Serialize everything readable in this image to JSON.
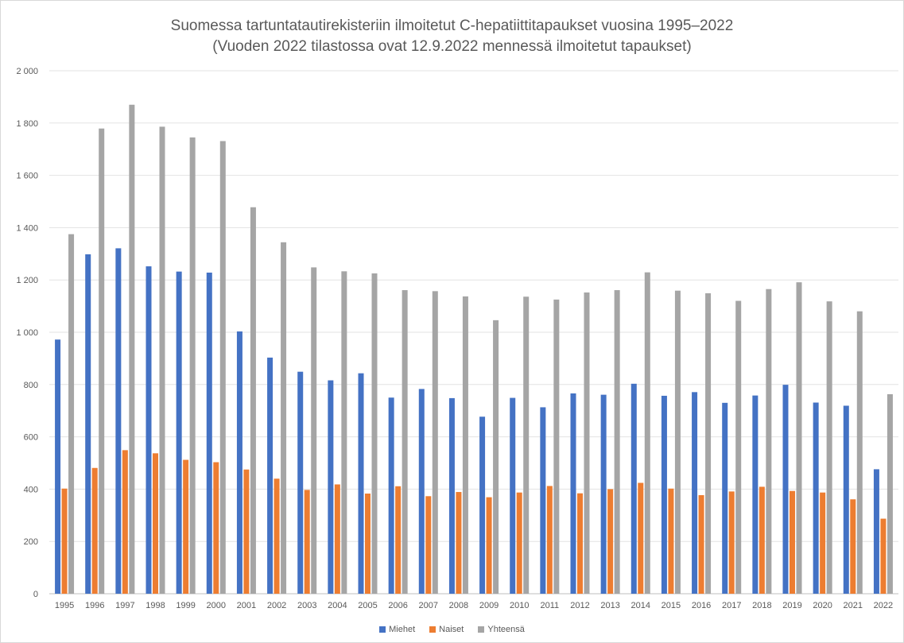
{
  "chart_data": {
    "type": "bar",
    "title": "Suomessa tartuntatautirekisteriin ilmoitetut C-hepatiittitapaukset vuosina 1995–2022",
    "subtitle": "(Vuoden 2022 tilastossa ovat 12.9.2022 mennessä ilmoitetut tapaukset)",
    "categories": [
      "1995",
      "1996",
      "1997",
      "1998",
      "1999",
      "2000",
      "2001",
      "2002",
      "2003",
      "2004",
      "2005",
      "2006",
      "2007",
      "2008",
      "2009",
      "2010",
      "2011",
      "2012",
      "2013",
      "2014",
      "2015",
      "2016",
      "2017",
      "2018",
      "2019",
      "2020",
      "2021",
      "2022"
    ],
    "series": [
      {
        "name": "Miehet",
        "color": "#4472C4",
        "values": [
          972,
          1298,
          1321,
          1252,
          1232,
          1228,
          1003,
          903,
          849,
          816,
          843,
          750,
          783,
          748,
          677,
          749,
          713,
          766,
          761,
          803,
          757,
          771,
          730,
          758,
          799,
          731,
          719,
          476
        ]
      },
      {
        "name": "Naiset",
        "color": "#ED7D31",
        "values": [
          402,
          481,
          549,
          537,
          512,
          503,
          475,
          440,
          397,
          418,
          383,
          411,
          373,
          389,
          369,
          387,
          412,
          384,
          400,
          424,
          402,
          377,
          391,
          409,
          393,
          387,
          361,
          287
        ]
      },
      {
        "name": "Yhteensä",
        "color": "#A5A5A5",
        "values": [
          1375,
          1779,
          1870,
          1786,
          1745,
          1731,
          1478,
          1344,
          1248,
          1233,
          1225,
          1161,
          1157,
          1137,
          1046,
          1136,
          1125,
          1152,
          1161,
          1229,
          1159,
          1149,
          1120,
          1165,
          1191,
          1118,
          1080,
          763
        ]
      }
    ],
    "yticks": [
      "0",
      "200",
      "400",
      "600",
      "800",
      "1 000",
      "1 200",
      "1 400",
      "1 600",
      "1 800",
      "2 000"
    ],
    "ylim": [
      0,
      2000
    ],
    "grid": true,
    "legend": "bottom"
  }
}
